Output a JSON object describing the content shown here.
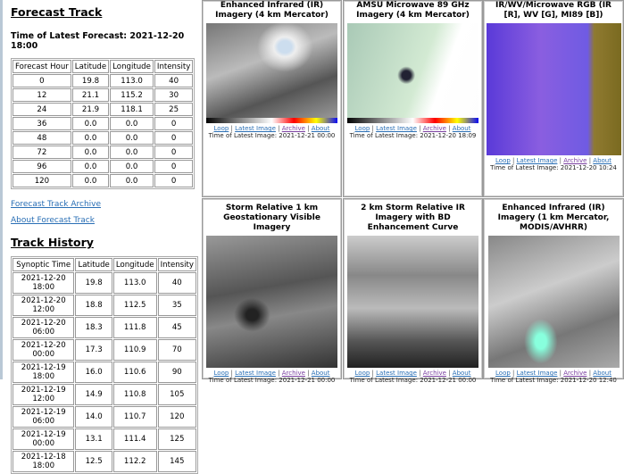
{
  "forecast": {
    "title": "Forecast Track",
    "latest_label": "Time of Latest Forecast: 2021-12-20 18:00",
    "headers": [
      "Forecast Hour",
      "Latitude",
      "Longitude",
      "Intensity"
    ],
    "rows": [
      [
        "0",
        "19.8",
        "113.0",
        "40"
      ],
      [
        "12",
        "21.1",
        "115.2",
        "30"
      ],
      [
        "24",
        "21.9",
        "118.1",
        "25"
      ],
      [
        "36",
        "0.0",
        "0.0",
        "0"
      ],
      [
        "48",
        "0.0",
        "0.0",
        "0"
      ],
      [
        "72",
        "0.0",
        "0.0",
        "0"
      ],
      [
        "96",
        "0.0",
        "0.0",
        "0"
      ],
      [
        "120",
        "0.0",
        "0.0",
        "0"
      ]
    ],
    "archive_link": "Forecast Track Archive",
    "about_link": "About Forecast Track"
  },
  "history": {
    "title": "Track History",
    "headers": [
      "Synoptic Time",
      "Latitude",
      "Longitude",
      "Intensity"
    ],
    "rows": [
      [
        "2021-12-20 18:00",
        "19.8",
        "113.0",
        "40"
      ],
      [
        "2021-12-20 12:00",
        "18.8",
        "112.5",
        "35"
      ],
      [
        "2021-12-20 06:00",
        "18.3",
        "111.8",
        "45"
      ],
      [
        "2021-12-20 00:00",
        "17.3",
        "110.9",
        "70"
      ],
      [
        "2021-12-19 18:00",
        "16.0",
        "110.6",
        "90"
      ],
      [
        "2021-12-19 12:00",
        "14.9",
        "110.8",
        "105"
      ],
      [
        "2021-12-19 06:00",
        "14.0",
        "110.7",
        "120"
      ],
      [
        "2021-12-19 00:00",
        "13.1",
        "111.4",
        "125"
      ],
      [
        "2021-12-18 18:00",
        "12.5",
        "112.2",
        "145"
      ]
    ]
  },
  "links": {
    "loop": "Loop",
    "latest": "Latest Image",
    "archive": "Archive",
    "about": "About",
    "sep": "|"
  },
  "panels": [
    {
      "title": "Enhanced Infrared (IR) Imagery (4 km Mercator)",
      "time": "Time of Latest Image: 2021-12-21 00:00"
    },
    {
      "title": "AMSU Microwave 89 GHz Imagery (4 km Mercator)",
      "time": "Time of Latest Image: 2021-12-20 18:09"
    },
    {
      "title": "IR/WV/Microwave RGB (IR [R], WV [G], MI89 [B])",
      "time": "Time of Latest Image: 2021-12-20 10:24"
    },
    {
      "title": "Storm Relative 1 km Geostationary Visible Imagery",
      "time": "Time of Latest Image: 2021-12-21 00:00"
    },
    {
      "title": "2 km Storm Relative IR Imagery with BD Enhancement Curve",
      "time": "Time of Latest Image: 2021-12-21 00:00"
    },
    {
      "title": "Enhanced Infrared (IR) Imagery (1 km Mercator, MODIS/AVHRR)",
      "time": "Time of Latest Image: 2021-12-20 12:40"
    }
  ]
}
